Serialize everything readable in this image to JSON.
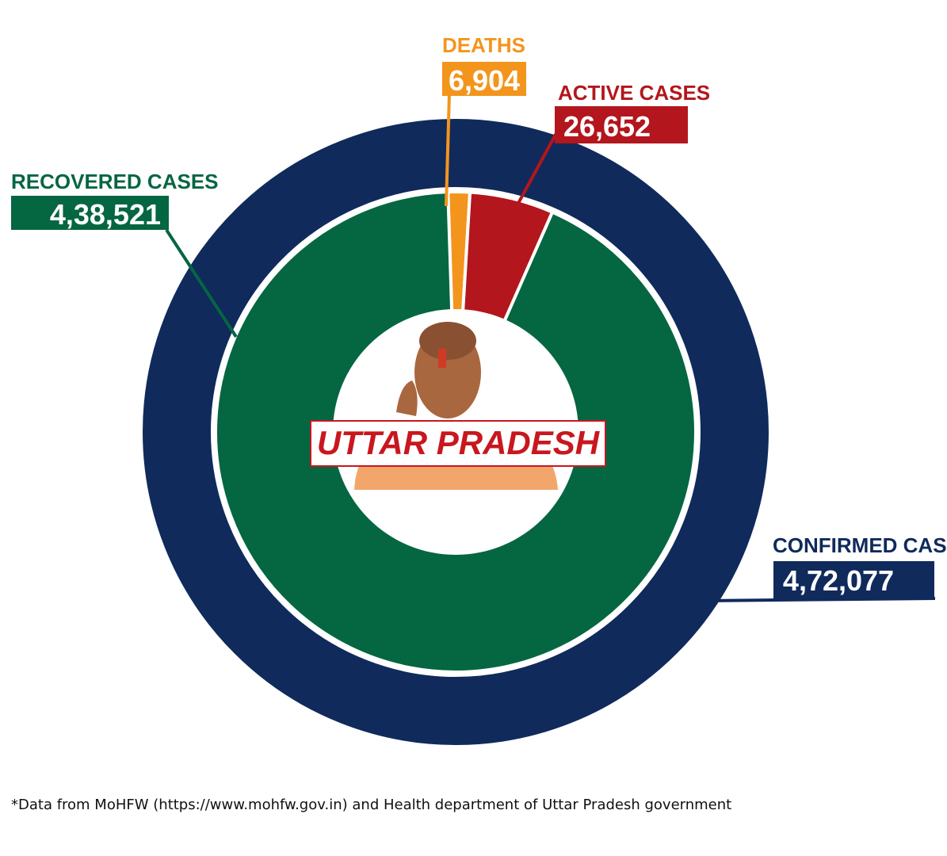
{
  "chart_data": {
    "type": "pie",
    "title": "UTTAR PRADESH",
    "outer_ring": {
      "name": "CONFIRMED CASES",
      "value": 472077,
      "label": "4,72,077",
      "color": "#102a5c"
    },
    "slices": [
      {
        "name": "RECOVERED CASES",
        "value": 438521,
        "label": "4,38,521",
        "color": "#056642"
      },
      {
        "name": "DEATHS",
        "value": 6904,
        "label": "6,904",
        "color": "#f3951d"
      },
      {
        "name": "ACTIVE CASES",
        "value": 26652,
        "label": "26,652",
        "color": "#b3161c"
      }
    ]
  },
  "footnote": "*Data from MoHFW (https://www.mohfw.gov.in) and Health department of Uttar Pradesh government",
  "colors": {
    "center_title": "#c8171e",
    "background": "#ffffff"
  }
}
